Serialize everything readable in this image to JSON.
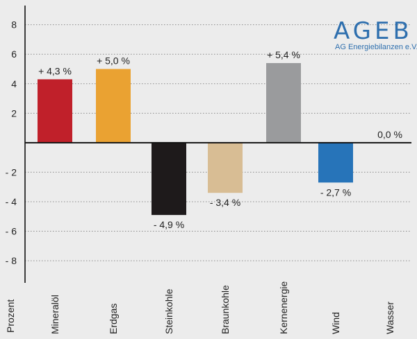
{
  "logo": {
    "main": "AGEB",
    "sub": "AG Energiebilanzen e.V.",
    "color": "#2e6fae"
  },
  "chart_data": {
    "type": "bar",
    "ylabel": "Prozent",
    "ylim": [
      -9.5,
      9.3
    ],
    "yticks": [
      8,
      6,
      4,
      2,
      -2,
      -4,
      -6,
      -8
    ],
    "ytick_labels": [
      "8",
      "6",
      "4",
      "2",
      "- 2",
      "- 4",
      "- 6",
      "- 8"
    ],
    "grid": "horizontal dotted",
    "categories": [
      "Mineralöl",
      "Erdgas",
      "Steinkohle",
      "Braunkohle",
      "Kernenergie",
      "Wind",
      "Wasser"
    ],
    "values": [
      4.3,
      5.0,
      -4.9,
      -3.4,
      5.4,
      -2.7,
      0.0
    ],
    "data_labels": [
      "+ 4,3 %",
      "+ 5,0 %",
      "- 4,9 %",
      "- 3,4 %",
      "+ 5,4 %",
      "- 2,7 %",
      "0,0 %"
    ],
    "colors": [
      "#c0202a",
      "#eaa232",
      "#1e1a1b",
      "#d8bd94",
      "#9a9b9d",
      "#2774b9",
      "#2a6fb0"
    ]
  }
}
